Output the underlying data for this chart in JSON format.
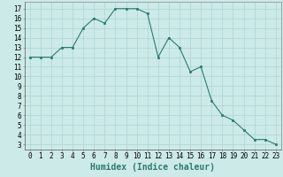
{
  "x": [
    0,
    1,
    2,
    3,
    4,
    5,
    6,
    7,
    8,
    9,
    10,
    11,
    12,
    13,
    14,
    15,
    16,
    17,
    18,
    19,
    20,
    21,
    22,
    23
  ],
  "y": [
    12,
    12,
    12,
    13,
    13,
    15,
    16,
    15.5,
    17,
    17,
    17,
    16.5,
    12,
    14,
    13,
    10.5,
    11,
    7.5,
    6,
    5.5,
    4.5,
    3.5,
    3.5,
    3
  ],
  "line_color": "#2d7a70",
  "marker_color": "#2d7a70",
  "bg_color": "#cceae8",
  "grid_color": "#aad4d0",
  "xlabel": "Humidex (Indice chaleur)",
  "xlim": [
    -0.5,
    23.5
  ],
  "ylim": [
    2.5,
    17.7
  ],
  "yticks": [
    3,
    4,
    5,
    6,
    7,
    8,
    9,
    10,
    11,
    12,
    13,
    14,
    15,
    16,
    17
  ],
  "xticks": [
    0,
    1,
    2,
    3,
    4,
    5,
    6,
    7,
    8,
    9,
    10,
    11,
    12,
    13,
    14,
    15,
    16,
    17,
    18,
    19,
    20,
    21,
    22,
    23
  ],
  "tick_fontsize": 5.5,
  "label_fontsize": 7
}
